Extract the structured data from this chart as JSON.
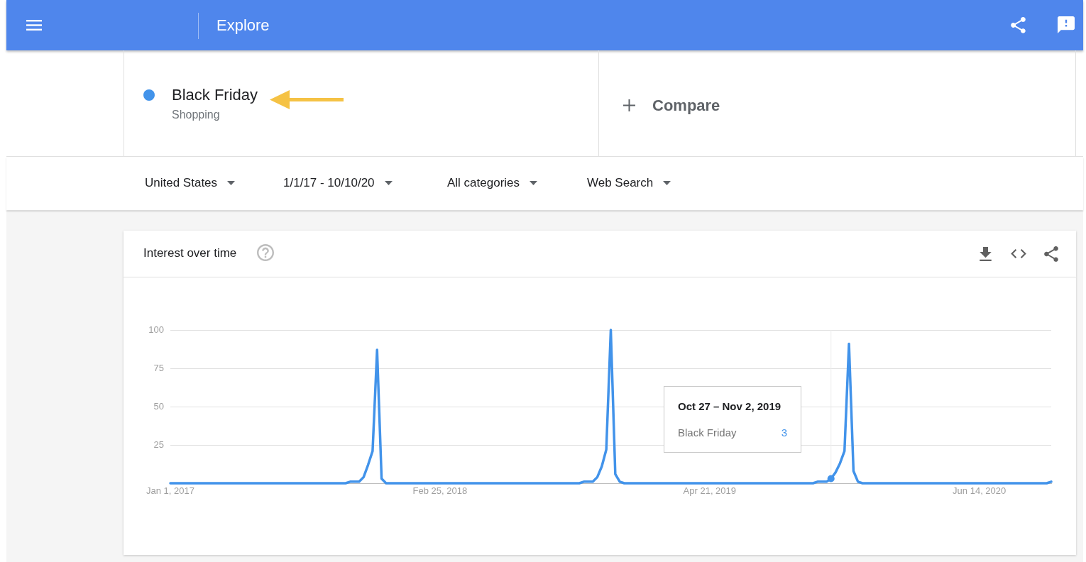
{
  "chart_data": {
    "type": "line",
    "title": "Interest over time",
    "x": [
      "2017-01-01",
      "2017-02-12",
      "2017-03-26",
      "2017-05-07",
      "2017-06-18",
      "2017-07-30",
      "2017-09-10",
      "2017-10-01",
      "2017-10-08",
      "2017-10-15",
      "2017-10-22",
      "2017-10-29",
      "2017-11-05",
      "2017-11-12",
      "2017-11-19",
      "2017-11-26",
      "2017-12-03",
      "2018-01-14",
      "2018-02-25",
      "2018-04-08",
      "2018-05-20",
      "2018-07-01",
      "2018-08-12",
      "2018-09-30",
      "2018-10-07",
      "2018-10-14",
      "2018-10-21",
      "2018-10-28",
      "2018-11-04",
      "2018-11-11",
      "2018-11-18",
      "2018-11-25",
      "2018-12-02",
      "2018-12-09",
      "2019-01-20",
      "2019-03-03",
      "2019-04-14",
      "2019-05-26",
      "2019-07-07",
      "2019-08-18",
      "2019-09-29",
      "2019-10-06",
      "2019-10-13",
      "2019-10-20",
      "2019-10-27",
      "2019-11-03",
      "2019-11-10",
      "2019-11-17",
      "2019-11-24",
      "2019-12-01",
      "2019-12-08",
      "2019-12-15",
      "2020-01-26",
      "2020-03-08",
      "2020-04-19",
      "2020-05-31",
      "2020-07-12",
      "2020-08-23",
      "2020-09-27",
      "2020-10-04"
    ],
    "series": [
      {
        "name": "Black Friday",
        "color": "#4293ea",
        "values": [
          0,
          0,
          0,
          0,
          0,
          0,
          0,
          0,
          1,
          1,
          1,
          4,
          12,
          21,
          87,
          3,
          0,
          0,
          0,
          0,
          0,
          0,
          0,
          0,
          1,
          1,
          1,
          4,
          11,
          22,
          100,
          6,
          1,
          0,
          0,
          0,
          0,
          0,
          0,
          0,
          0,
          1,
          1,
          1,
          3,
          7,
          13,
          21,
          91,
          8,
          1,
          0,
          0,
          0,
          0,
          0,
          0,
          0,
          0,
          1
        ]
      }
    ],
    "xlim": [
      "2017-01-01",
      "2020-10-04"
    ],
    "xticks": [
      {
        "value": "2017-01-01",
        "label": "Jan 1, 2017"
      },
      {
        "value": "2018-02-25",
        "label": "Feb 25, 2018"
      },
      {
        "value": "2019-04-21",
        "label": "Apr 21, 2019"
      },
      {
        "value": "2020-06-14",
        "label": "Jun 14, 2020"
      }
    ],
    "ylim": [
      0,
      100
    ],
    "yticks": [
      25,
      50,
      75,
      100
    ],
    "grid": "y",
    "legend": "top left",
    "ref_lines": [
      {
        "axis": "x",
        "value": "2019-10-27",
        "color": "#ececec"
      }
    ],
    "annotations": [
      "Explore",
      "Shopping",
      "Compare",
      "United States",
      "1/1/17 - 10/10/20",
      "All categories",
      "Web Search",
      "Oct 27 – Nov 2, 2019",
      "3"
    ]
  }
}
